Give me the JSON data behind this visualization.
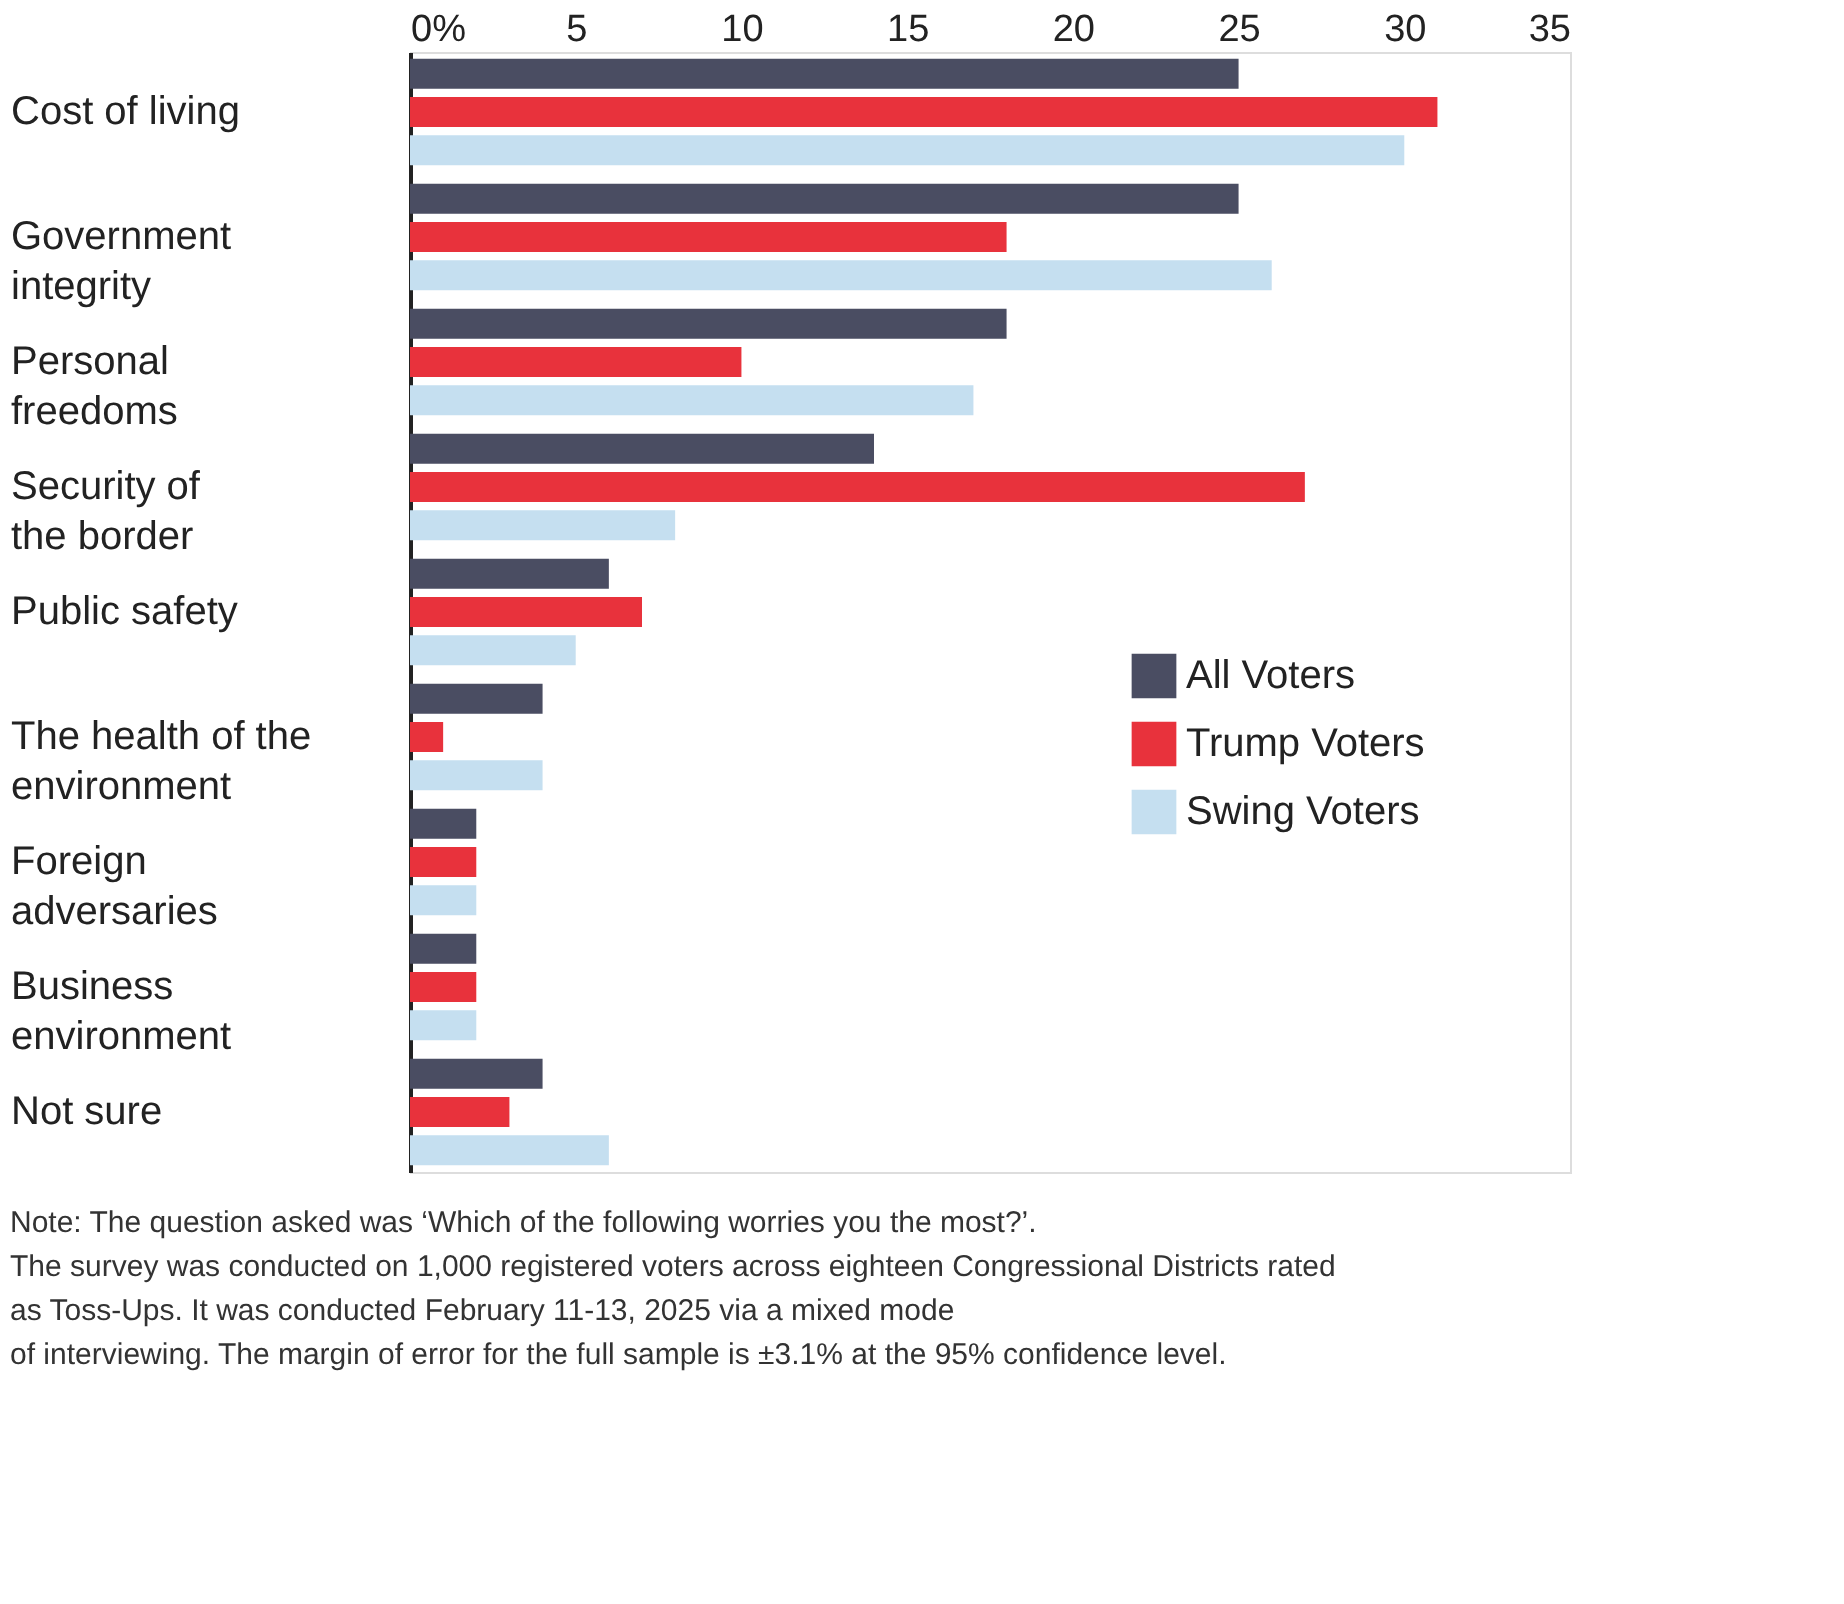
{
  "chart_data": {
    "type": "bar",
    "orientation": "horizontal",
    "categories": [
      "Cost of living",
      "Government\nintegrity",
      "Personal\nfreedoms",
      "Security of\nthe border",
      "Public safety",
      "The health of the\nenvironment",
      "Foreign\nadversaries",
      "Business\nenvironment",
      "Not sure"
    ],
    "series": [
      {
        "name": "All Voters",
        "color": "#4a4d62",
        "values": [
          25,
          25,
          18,
          14,
          6,
          4,
          2,
          2,
          4
        ]
      },
      {
        "name": "Trump Voters",
        "color": "#e8323c",
        "values": [
          31,
          18,
          10,
          27,
          7,
          1,
          2,
          2,
          3
        ]
      },
      {
        "name": "Swing Voters",
        "color": "#c5dff0",
        "values": [
          30,
          26,
          17,
          8,
          5,
          4,
          2,
          2,
          6
        ]
      }
    ],
    "xlim": [
      0,
      35
    ],
    "xticks": [
      {
        "value": 0,
        "label": "0%"
      },
      5,
      10,
      15,
      20,
      25,
      30,
      35
    ],
    "grid": false,
    "legend": "right",
    "annotations": [
      "Note: The question asked was ‘Which of the following worries you the most?’.",
      "The survey was conducted on 1,000 registered voters across eighteen Congressional Districts rated",
      "as Toss-Ups. It was conducted February 11-13, 2025 via a mixed mode",
      "of interviewing. The margin of error for the full sample is ±3.1% at the 95% confidence level."
    ]
  }
}
